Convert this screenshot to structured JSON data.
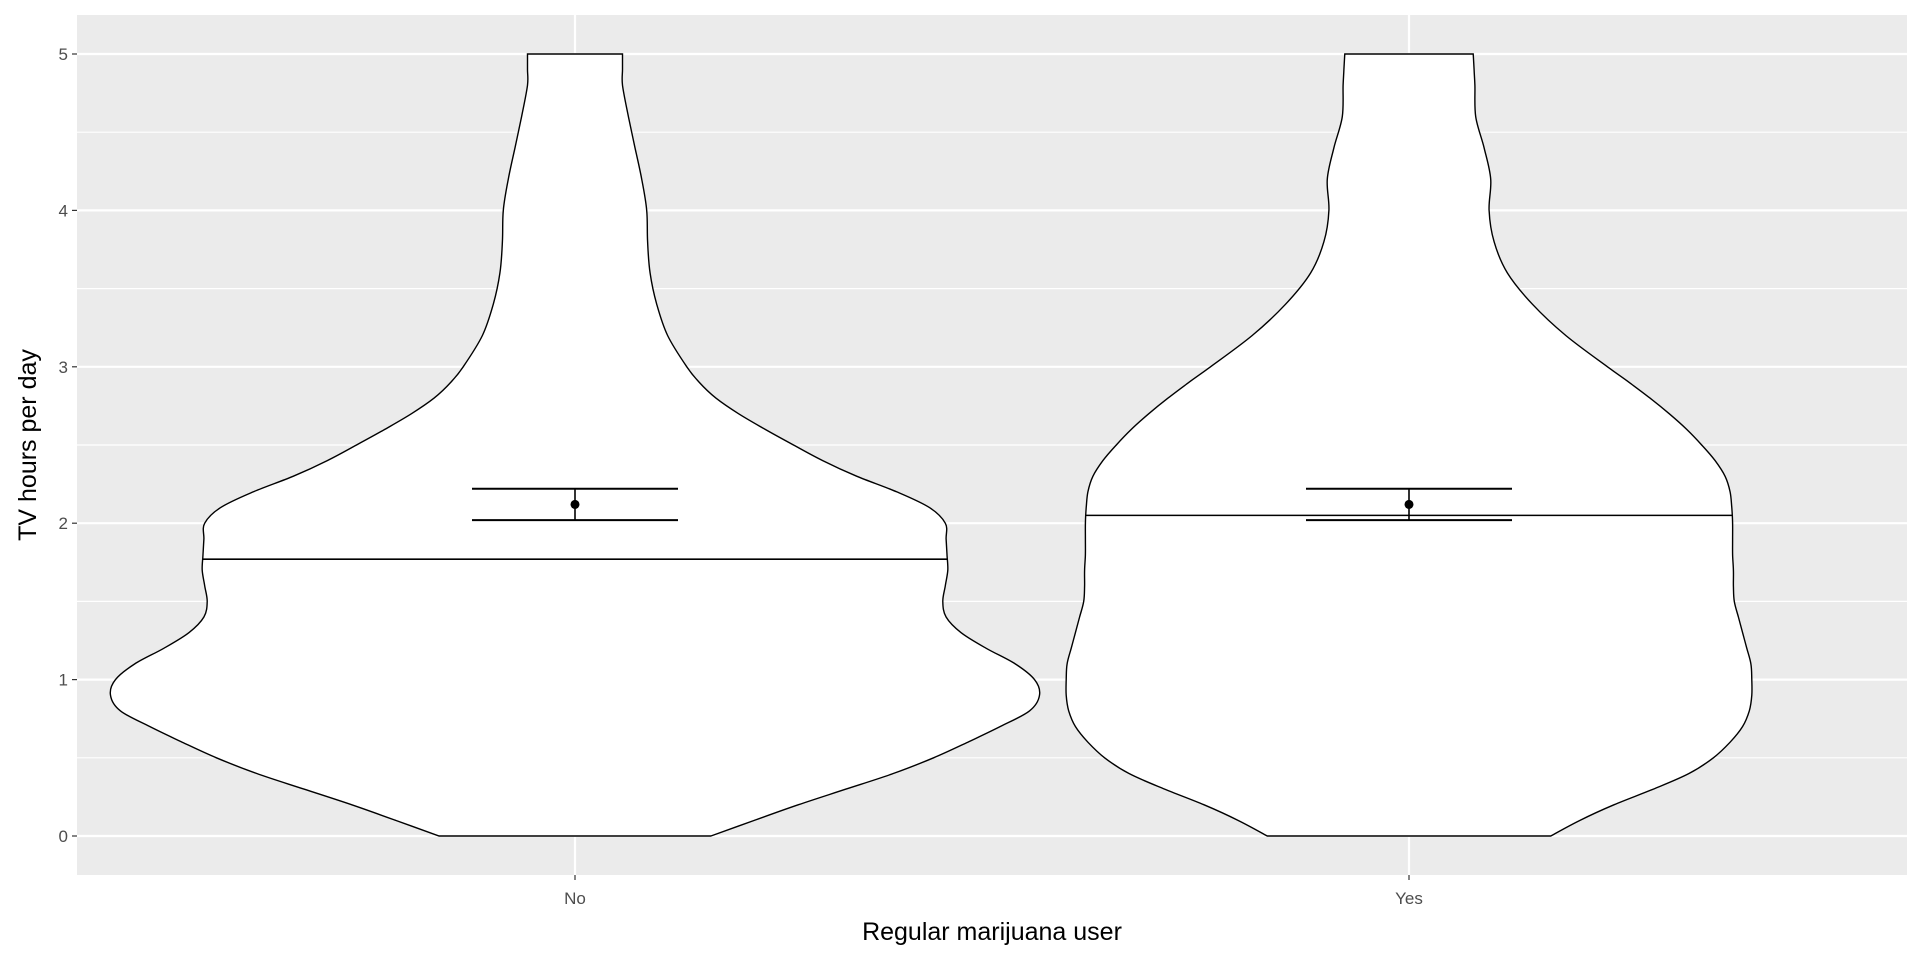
{
  "chart_data": {
    "type": "violin",
    "title": "",
    "xlabel": "Regular marijuana user",
    "ylabel": "TV hours per day",
    "categories": [
      "No",
      "Yes"
    ],
    "ylim": [
      -0.25,
      5.25
    ],
    "y_ticks": [
      0,
      1,
      2,
      3,
      4,
      5
    ],
    "grid": true,
    "legend": "none",
    "colors": {
      "panel": "#EBEBEB",
      "grid": "#FFFFFF",
      "violin_fill": "#FFFFFF",
      "stroke": "#000000",
      "tick_text": "#4D4D4D"
    },
    "violins": [
      {
        "category": "No",
        "quantile_line": 1.77,
        "mean": 2.12,
        "ci_low": 2.02,
        "ci_high": 2.22,
        "density_halfwidth": [
          [
            0,
            0.163
          ],
          [
            0.1,
            0.215
          ],
          [
            0.2,
            0.268
          ],
          [
            0.3,
            0.325
          ],
          [
            0.4,
            0.382
          ],
          [
            0.5,
            0.43
          ],
          [
            0.6,
            0.471
          ],
          [
            0.7,
            0.51
          ],
          [
            0.8,
            0.545
          ],
          [
            0.9,
            0.557
          ],
          [
            1.0,
            0.551
          ],
          [
            1.1,
            0.528
          ],
          [
            1.2,
            0.493
          ],
          [
            1.3,
            0.463
          ],
          [
            1.4,
            0.445
          ],
          [
            1.5,
            0.441
          ],
          [
            1.6,
            0.444
          ],
          [
            1.7,
            0.447
          ],
          [
            1.8,
            0.446
          ],
          [
            1.9,
            0.445
          ],
          [
            2.0,
            0.444
          ],
          [
            2.1,
            0.425
          ],
          [
            2.2,
            0.386
          ],
          [
            2.3,
            0.338
          ],
          [
            2.4,
            0.297
          ],
          [
            2.5,
            0.262
          ],
          [
            2.6,
            0.228
          ],
          [
            2.7,
            0.196
          ],
          [
            2.8,
            0.169
          ],
          [
            2.9,
            0.149
          ],
          [
            3.0,
            0.134
          ],
          [
            3.2,
            0.111
          ],
          [
            3.4,
            0.098
          ],
          [
            3.6,
            0.09
          ],
          [
            3.8,
            0.087
          ],
          [
            4.0,
            0.086
          ],
          [
            4.2,
            0.08
          ],
          [
            4.4,
            0.072
          ],
          [
            4.6,
            0.064
          ],
          [
            4.8,
            0.057
          ],
          [
            4.9,
            0.057
          ],
          [
            5.0,
            0.057
          ]
        ]
      },
      {
        "category": "Yes",
        "quantile_line": 2.05,
        "mean": 2.12,
        "ci_low": 2.02,
        "ci_high": 2.22,
        "density_halfwidth": [
          [
            0,
            0.17
          ],
          [
            0.1,
            0.205
          ],
          [
            0.2,
            0.246
          ],
          [
            0.3,
            0.293
          ],
          [
            0.4,
            0.336
          ],
          [
            0.5,
            0.365
          ],
          [
            0.6,
            0.385
          ],
          [
            0.7,
            0.4
          ],
          [
            0.8,
            0.408
          ],
          [
            0.9,
            0.411
          ],
          [
            1.0,
            0.411
          ],
          [
            1.1,
            0.41
          ],
          [
            1.2,
            0.405
          ],
          [
            1.3,
            0.4
          ],
          [
            1.4,
            0.395
          ],
          [
            1.5,
            0.39
          ],
          [
            1.6,
            0.389
          ],
          [
            1.7,
            0.389
          ],
          [
            1.8,
            0.388
          ],
          [
            1.9,
            0.388
          ],
          [
            2.0,
            0.388
          ],
          [
            2.1,
            0.387
          ],
          [
            2.2,
            0.385
          ],
          [
            2.3,
            0.379
          ],
          [
            2.4,
            0.367
          ],
          [
            2.5,
            0.351
          ],
          [
            2.6,
            0.333
          ],
          [
            2.7,
            0.312
          ],
          [
            2.8,
            0.289
          ],
          [
            2.9,
            0.264
          ],
          [
            3.0,
            0.238
          ],
          [
            3.2,
            0.188
          ],
          [
            3.4,
            0.148
          ],
          [
            3.6,
            0.118
          ],
          [
            3.8,
            0.102
          ],
          [
            4.0,
            0.096
          ],
          [
            4.2,
            0.098
          ],
          [
            4.4,
            0.09
          ],
          [
            4.6,
            0.08
          ],
          [
            4.8,
            0.079
          ],
          [
            4.9,
            0.078
          ],
          [
            5.0,
            0.077
          ]
        ]
      }
    ]
  }
}
